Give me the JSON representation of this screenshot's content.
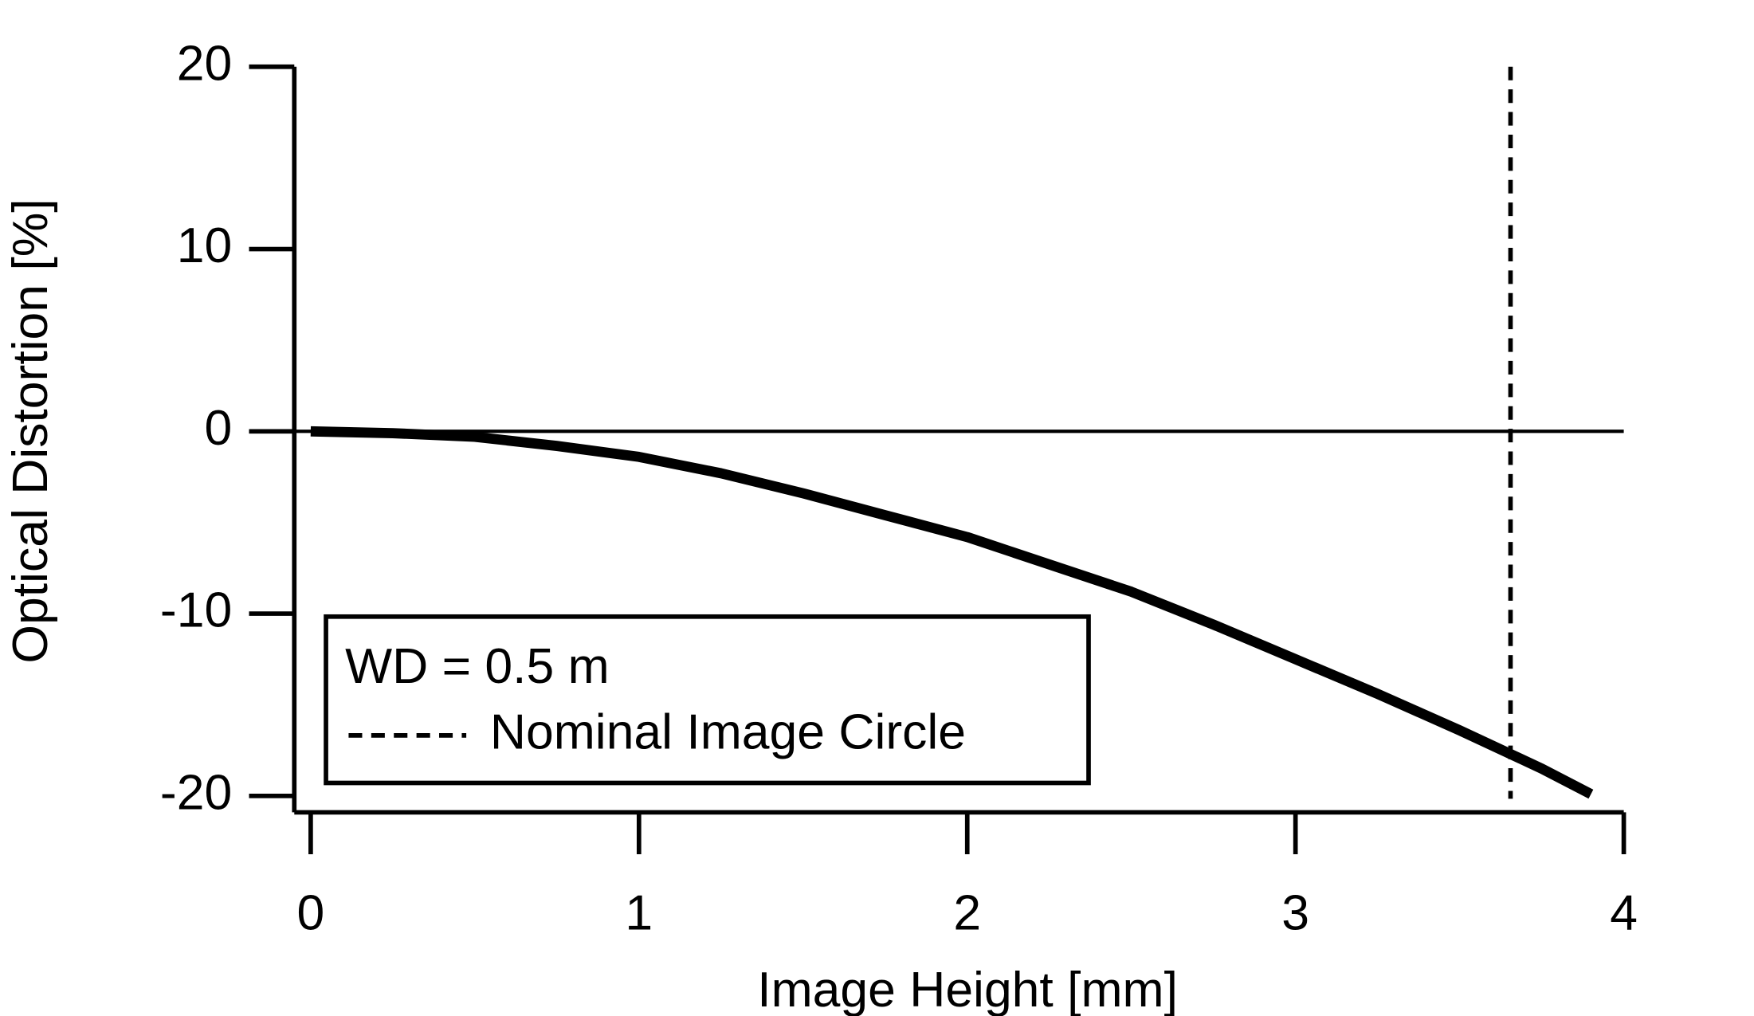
{
  "chart_data": {
    "type": "line",
    "x_label": "Image Height [mm]",
    "y_label": "Optical Distortion [%]",
    "legend_title": "WD = 0.5 m",
    "x": [
      0,
      0.25,
      0.5,
      0.75,
      1,
      1.25,
      1.5,
      1.75,
      2,
      2.25,
      2.5,
      2.75,
      3,
      3.25,
      3.5,
      3.75,
      3.9
    ],
    "series": [
      {
        "color": "#000000",
        "values": [
          0,
          -0.1,
          -0.3,
          -0.8,
          -1.4,
          -2.3,
          -3.4,
          -4.6,
          -5.8,
          -7.3,
          -8.8,
          -10.6,
          -12.5,
          -14.4,
          -16.4,
          -18.5,
          -19.9
        ]
      }
    ],
    "reference_lines": [
      {
        "x": 3.655,
        "name": "Nominal Image Circle",
        "color": "#000000",
        "style": "dashed"
      }
    ],
    "xlim": [
      -0.05,
      4
    ],
    "ylim": [
      -20.9,
      20
    ],
    "xticks": [
      0,
      1,
      2,
      3,
      4
    ],
    "yticks": [
      -20,
      -10,
      0,
      10,
      20
    ],
    "zero_line": true,
    "legend": "lower left"
  }
}
